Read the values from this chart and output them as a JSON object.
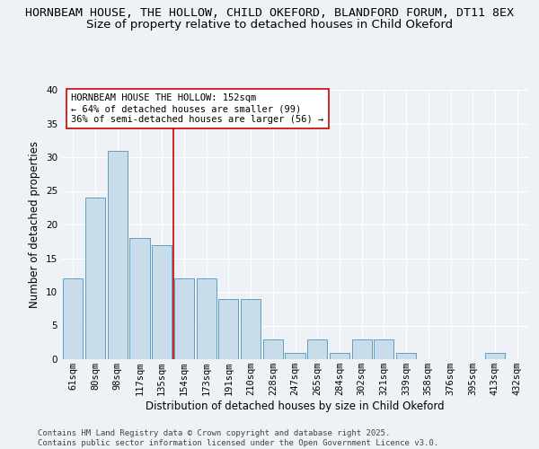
{
  "title_line1": "HORNBEAM HOUSE, THE HOLLOW, CHILD OKEFORD, BLANDFORD FORUM, DT11 8EX",
  "title_line2": "Size of property relative to detached houses in Child Okeford",
  "xlabel": "Distribution of detached houses by size in Child Okeford",
  "ylabel": "Number of detached properties",
  "categories": [
    "61sqm",
    "80sqm",
    "98sqm",
    "117sqm",
    "135sqm",
    "154sqm",
    "173sqm",
    "191sqm",
    "210sqm",
    "228sqm",
    "247sqm",
    "265sqm",
    "284sqm",
    "302sqm",
    "321sqm",
    "339sqm",
    "358sqm",
    "376sqm",
    "395sqm",
    "413sqm",
    "432sqm"
  ],
  "values": [
    12,
    24,
    31,
    18,
    17,
    12,
    12,
    9,
    9,
    3,
    1,
    3,
    1,
    3,
    3,
    1,
    0,
    0,
    0,
    1,
    0
  ],
  "bar_color": "#c9dcea",
  "bar_edge_color": "#5f9fc0",
  "vline_color": "#cc0000",
  "vline_index": 4,
  "annotation_text": "HORNBEAM HOUSE THE HOLLOW: 152sqm\n← 64% of detached houses are smaller (99)\n36% of semi-detached houses are larger (56) →",
  "annotation_box_facecolor": "#ffffff",
  "annotation_box_edgecolor": "#cc0000",
  "ylim": [
    0,
    40
  ],
  "yticks": [
    0,
    5,
    10,
    15,
    20,
    25,
    30,
    35,
    40
  ],
  "bg_color": "#eef2f7",
  "grid_color": "#ffffff",
  "footer_text": "Contains HM Land Registry data © Crown copyright and database right 2025.\nContains public sector information licensed under the Open Government Licence v3.0.",
  "title_fontsize": 9.5,
  "subtitle_fontsize": 9.5,
  "axis_label_fontsize": 8.5,
  "tick_fontsize": 7.5,
  "annotation_fontsize": 7.5,
  "footer_fontsize": 6.5
}
